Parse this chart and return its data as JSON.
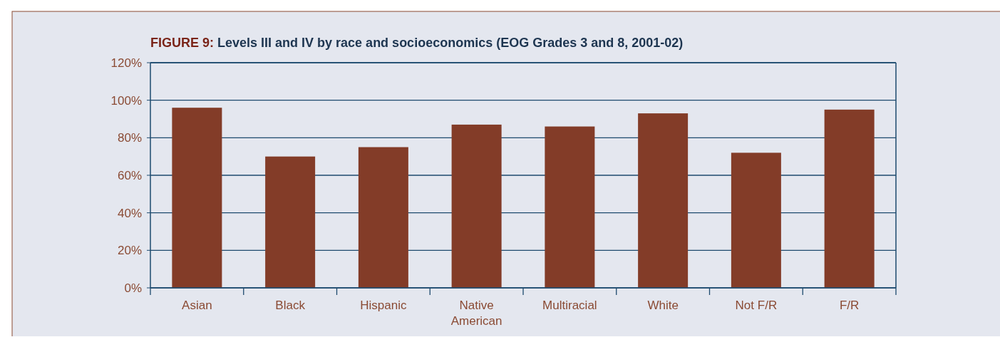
{
  "chart_data": {
    "type": "bar",
    "title": "FIGURE 9: Levels III and IV by race and socioeconomics (EOG Grades 3 and 8, 2001-02)",
    "categories": [
      "Asian",
      "Black",
      "Hispanic",
      "Native American",
      "Multiracial",
      "White",
      "Not F/R",
      "F/R"
    ],
    "values": [
      96,
      70,
      75,
      87,
      86,
      93,
      72,
      95
    ],
    "color": "#833c28",
    "ylim": [
      0,
      120
    ],
    "yticks": [
      {
        "value": 0,
        "label": "0%"
      },
      {
        "value": 20,
        "label": "20%"
      },
      {
        "value": 40,
        "label": "40%"
      },
      {
        "value": 60,
        "label": "60%"
      },
      {
        "value": 80,
        "label": "80%"
      },
      {
        "value": 100,
        "label": "100%"
      },
      {
        "value": 120,
        "label": "120%"
      }
    ],
    "grid": "y"
  }
}
